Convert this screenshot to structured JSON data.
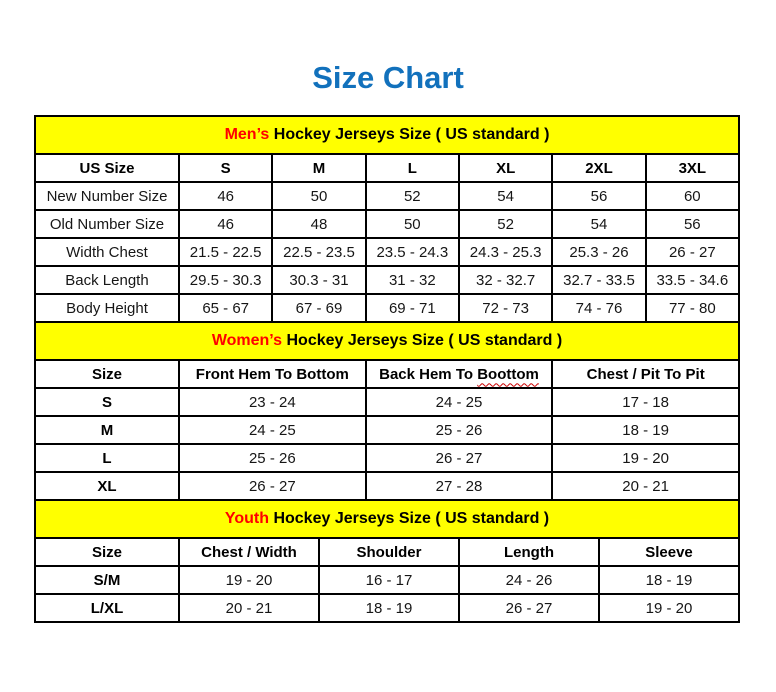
{
  "page": {
    "title": "Size Chart"
  },
  "colors": {
    "title_blue": "#1271BC",
    "section_band_yellow": "#FFFF00",
    "section_lead_red": "#FF0000",
    "spellcheck_squiggle_red": "#CC0000",
    "table_border_black": "#000000"
  },
  "tables": [
    {
      "id": "mens",
      "section_title": {
        "highlight": "Men’s",
        "rest": " Hockey Jerseys Size ( US standard )"
      },
      "columns": [
        "US Size",
        "S",
        "M",
        "L",
        "XL",
        "2XL",
        "3XL"
      ],
      "rows": [
        {
          "label": "New Number Size",
          "values": [
            "46",
            "50",
            "52",
            "54",
            "56",
            "60"
          ]
        },
        {
          "label": "Old Number Size",
          "values": [
            "46",
            "48",
            "50",
            "52",
            "54",
            "56"
          ]
        },
        {
          "label": "Width Chest",
          "values": [
            "21.5 - 22.5",
            "22.5 - 23.5",
            "23.5 - 24.3",
            "24.3 - 25.3",
            "25.3 - 26",
            "26 - 27"
          ]
        },
        {
          "label": "Back Length",
          "values": [
            "29.5 - 30.3",
            "30.3 - 31",
            "31 - 32",
            "32 - 32.7",
            "32.7 - 33.5",
            "33.5 - 34.6"
          ]
        },
        {
          "label": "Body Height",
          "values": [
            "65 - 67",
            "67 - 69",
            "69 - 71",
            "72 - 73",
            "74 - 76",
            "77 - 80"
          ]
        }
      ]
    },
    {
      "id": "womens",
      "section_title": {
        "highlight": "Women’s",
        "rest": " Hockey Jerseys Size ( US standard )"
      },
      "columns": [
        "Size",
        "Front Hem To Bottom",
        {
          "text": "Back Hem To Boottom",
          "misspell_underline": "Boottom"
        },
        "Chest / Pit To Pit"
      ],
      "rows": [
        {
          "label": "S",
          "values": [
            "23 - 24",
            "24 - 25",
            "17 - 18"
          ]
        },
        {
          "label": "M",
          "values": [
            "24 - 25",
            "25 - 26",
            "18 - 19"
          ]
        },
        {
          "label": "L",
          "values": [
            "25 - 26",
            "26 - 27",
            "19 - 20"
          ]
        },
        {
          "label": "XL",
          "values": [
            "26 - 27",
            "27 - 28",
            "20 - 21"
          ]
        }
      ]
    },
    {
      "id": "youth",
      "section_title": {
        "highlight": "Youth",
        "rest": " Hockey Jerseys Size ( US standard )"
      },
      "columns": [
        "Size",
        "Chest / Width",
        "Shoulder",
        "Length",
        "Sleeve"
      ],
      "rows": [
        {
          "label": "S/M",
          "values": [
            "19 - 20",
            "16 - 17",
            "24 - 26",
            "18 - 19"
          ]
        },
        {
          "label": "L/XL",
          "values": [
            "20 - 21",
            "18 - 19",
            "26 - 27",
            "19 - 20"
          ]
        }
      ]
    }
  ]
}
